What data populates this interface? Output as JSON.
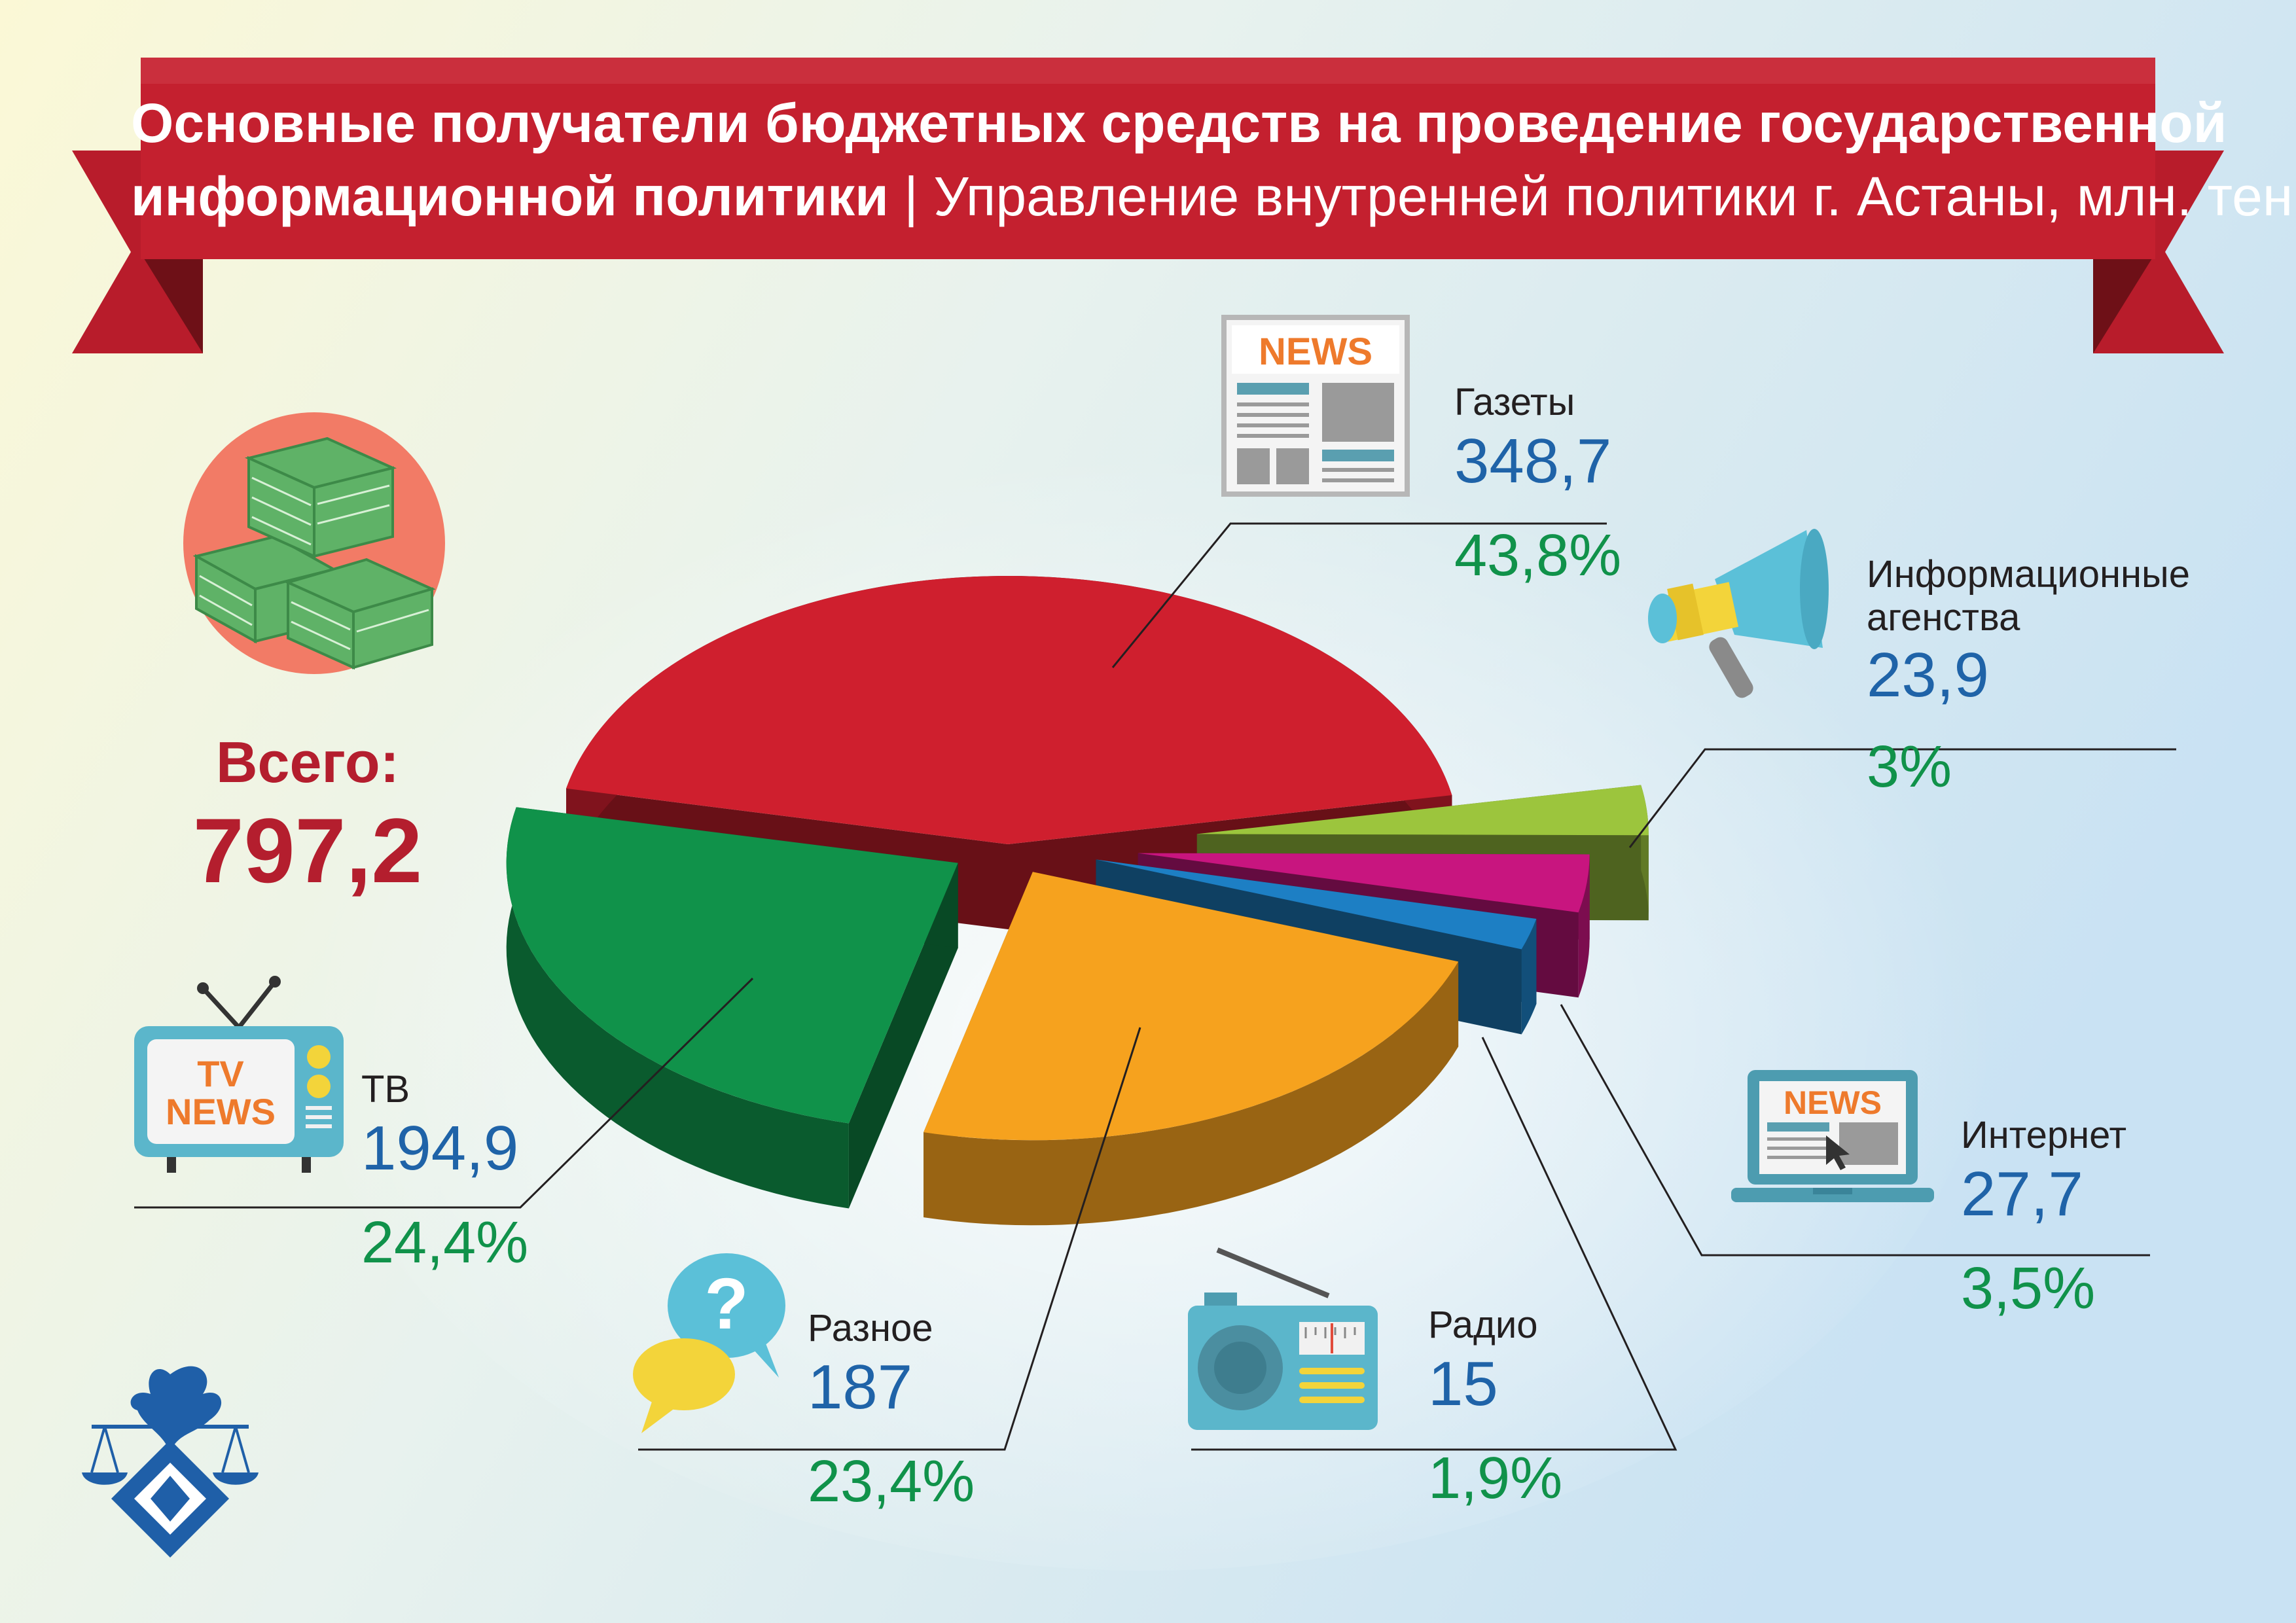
{
  "header": {
    "title_bold_1": "Основные получатели бюджетных средств на проведение государственной",
    "title_bold_2": "информационной политики",
    "title_separator": "|",
    "title_rest": "Управление внутренней политики г. Астаны, млн. тенге"
  },
  "total": {
    "label": "Всего:",
    "value": "797,2"
  },
  "icon_texts": {
    "news": "NEWS",
    "tv_line1": "TV",
    "tv_line2": "NEWS",
    "question": "?"
  },
  "colors": {
    "newspapers": "#cf1f2e",
    "tv": "#10924a",
    "misc": "#f6a21e",
    "radio": "#1d7fc4",
    "internet": "#c8157f",
    "agencies": "#9cc53d",
    "value_text": "#1f63a8",
    "percent_text": "#10924a",
    "total_text": "#b41e2e",
    "ribbon": "#c4202f"
  },
  "chart_data": {
    "type": "pie",
    "title": "Основные получатели бюджетных средств на проведение государственной информационной политики | Управление внутренней политики г. Астаны, млн. тенге",
    "unit": "млн. тенге",
    "total": 797.2,
    "slices": [
      {
        "key": "newspapers",
        "label": "Газеты",
        "value": 348.7,
        "value_text": "348,7",
        "percent": 43.8,
        "percent_text": "43,8%",
        "color": "#cf1f2e",
        "icon": "newspaper-icon"
      },
      {
        "key": "agencies",
        "label": "Информационные агенства",
        "value": 23.9,
        "value_text": "23,9",
        "percent": 3,
        "percent_text": "3%",
        "color": "#9cc53d",
        "icon": "megaphone-icon"
      },
      {
        "key": "internet",
        "label": "Интернет",
        "value": 27.7,
        "value_text": "27,7",
        "percent": 3.5,
        "percent_text": "3,5%",
        "color": "#c8157f",
        "icon": "laptop-news-icon"
      },
      {
        "key": "radio",
        "label": "Радио",
        "value": 15,
        "value_text": "15",
        "percent": 1.9,
        "percent_text": "1,9%",
        "color": "#1d7fc4",
        "icon": "radio-icon"
      },
      {
        "key": "misc",
        "label": "Разное",
        "value": 187,
        "value_text": "187",
        "percent": 23.4,
        "percent_text": "23,4%",
        "color": "#f6a21e",
        "icon": "speech-bubbles-icon"
      },
      {
        "key": "tv",
        "label": "ТВ",
        "value": 194.9,
        "value_text": "194,9",
        "percent": 24.4,
        "percent_text": "24,4%",
        "color": "#10924a",
        "icon": "tv-news-icon"
      }
    ],
    "legend": "none",
    "style": "3d-exploded"
  }
}
